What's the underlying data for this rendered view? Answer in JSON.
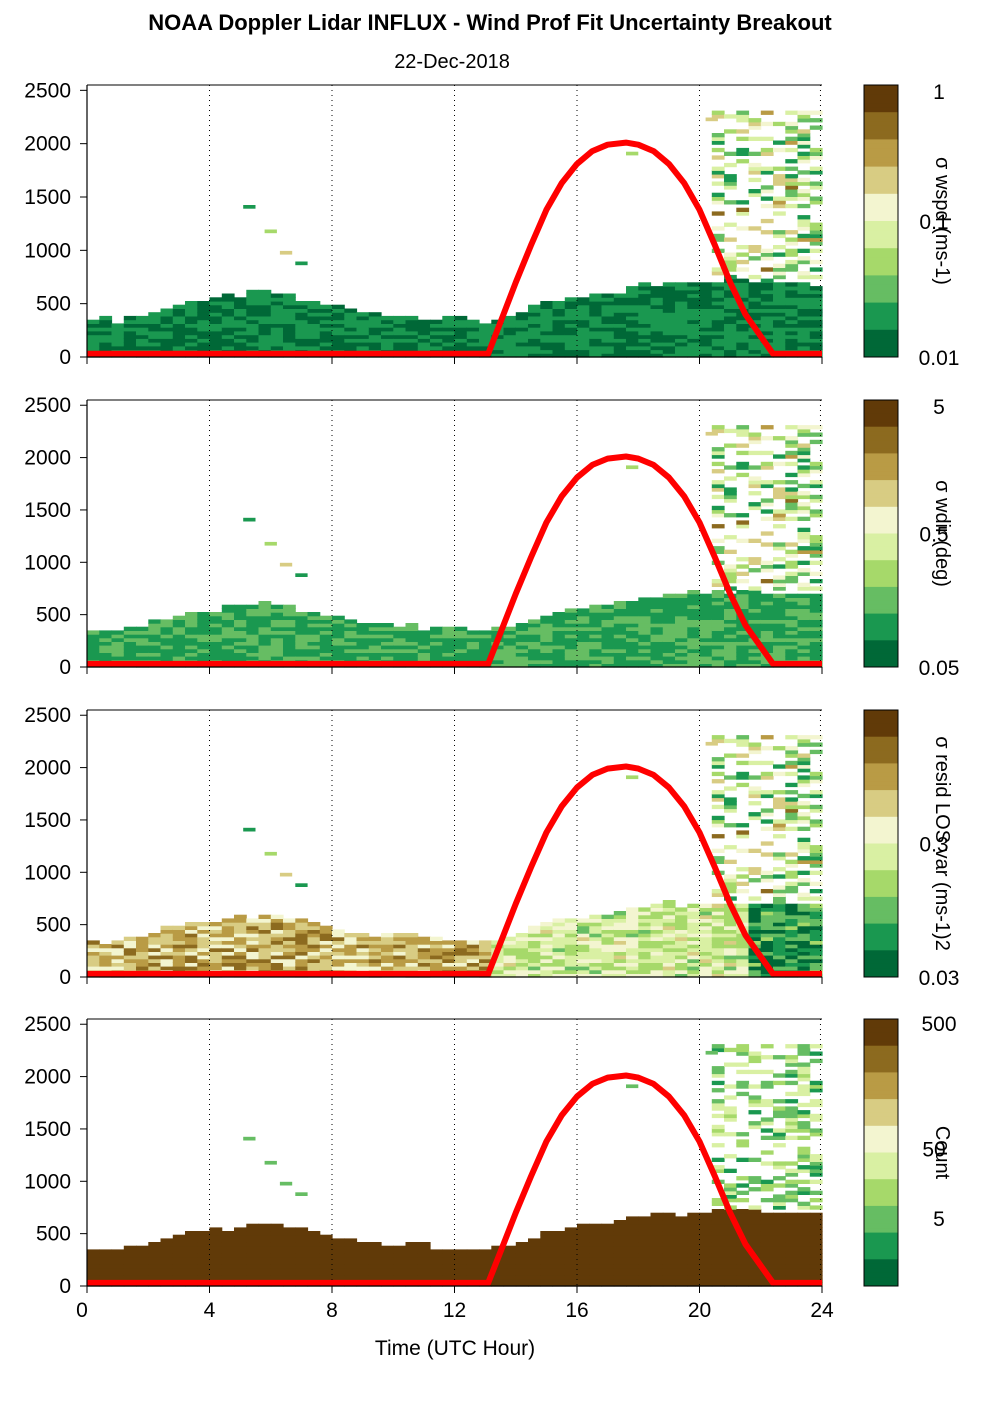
{
  "title": "NOAA Doppler Lidar INFLUX - Wind Prof Fit Uncertainty Breakout",
  "subtitle": "22-Dec-2018",
  "x_axis": {
    "label": "Time (UTC Hour)",
    "range": [
      0,
      24
    ],
    "ticks": [
      0,
      4,
      8,
      12,
      16,
      20,
      24
    ],
    "tick_labels": [
      "0",
      "4",
      "8",
      "12",
      "16",
      "20",
      "24"
    ]
  },
  "y_axis": {
    "range": [
      0,
      2550
    ],
    "ticks": [
      0,
      500,
      1000,
      1500,
      2000,
      2500
    ],
    "tick_labels": [
      "0",
      "500",
      "1000",
      "1500",
      "2000",
      "2500"
    ]
  },
  "colormap": [
    "#006837",
    "#1a9850",
    "#66bd63",
    "#a6d96a",
    "#d9f0a3",
    "#f3f5d0",
    "#d8cc83",
    "#b99b45",
    "#8c6a1f",
    "#613a08"
  ],
  "sun_color": "#ff0000",
  "chart_data": [
    {
      "type": "heatmap",
      "name": "sigma-wspd",
      "colorbar": {
        "label": "σ wspd (ms-1)",
        "scale": "log",
        "min": 0.01,
        "max": 1,
        "tick_labels": [
          "1",
          "0.1",
          "0.01"
        ]
      },
      "mode": "uncertainty",
      "layer_offset": 0.0
    },
    {
      "type": "heatmap",
      "name": "sigma-wdir",
      "colorbar": {
        "label": "σ wdir (deg)",
        "scale": "log",
        "min": 0.05,
        "max": 5,
        "tick_labels": [
          "5",
          "0.5",
          "0.05"
        ]
      },
      "mode": "uncertainty",
      "layer_offset": 0.08
    },
    {
      "type": "heatmap",
      "name": "sigma-resid-los-var",
      "colorbar": {
        "label": "σ resid LOS var (ms-1)2",
        "scale": "log",
        "min": 0.03,
        "max": 3,
        "tick_labels": [
          "",
          "0.3",
          "0.03"
        ]
      },
      "mode": "resid",
      "layer_offset": 0.0
    },
    {
      "type": "heatmap",
      "name": "count",
      "colorbar": {
        "label": "Count",
        "scale": "log",
        "min": 1.5,
        "max": 600,
        "tick_labels": [
          "500",
          "50",
          "5"
        ]
      },
      "mode": "count",
      "layer_offset": 0.0
    }
  ],
  "profile": {
    "boundary_layer_top": [
      [
        0,
        380
      ],
      [
        1,
        360
      ],
      [
        2,
        420
      ],
      [
        3,
        520
      ],
      [
        4,
        560
      ],
      [
        5,
        600
      ],
      [
        6,
        640
      ],
      [
        7,
        560
      ],
      [
        8,
        500
      ],
      [
        9,
        440
      ],
      [
        10,
        420
      ],
      [
        11,
        400
      ],
      [
        12,
        390
      ],
      [
        13,
        360
      ],
      [
        14,
        420
      ],
      [
        15,
        520
      ],
      [
        16,
        580
      ],
      [
        17,
        620
      ],
      [
        18,
        680
      ],
      [
        19,
        720
      ],
      [
        20,
        720
      ],
      [
        21,
        740
      ],
      [
        22,
        730
      ],
      [
        23,
        720
      ],
      [
        23.8,
        700
      ]
    ],
    "sun_elevation_curve": [
      [
        0,
        30
      ],
      [
        13.1,
        30
      ],
      [
        13.6,
        400
      ],
      [
        14,
        700
      ],
      [
        14.5,
        1050
      ],
      [
        15,
        1380
      ],
      [
        15.5,
        1630
      ],
      [
        16,
        1810
      ],
      [
        16.5,
        1930
      ],
      [
        17,
        1990
      ],
      [
        17.6,
        2010
      ],
      [
        18,
        1990
      ],
      [
        18.5,
        1930
      ],
      [
        19,
        1810
      ],
      [
        19.5,
        1630
      ],
      [
        20,
        1380
      ],
      [
        20.5,
        1050
      ],
      [
        21,
        700
      ],
      [
        21.5,
        400
      ],
      [
        22.4,
        30
      ],
      [
        24,
        30
      ]
    ]
  }
}
